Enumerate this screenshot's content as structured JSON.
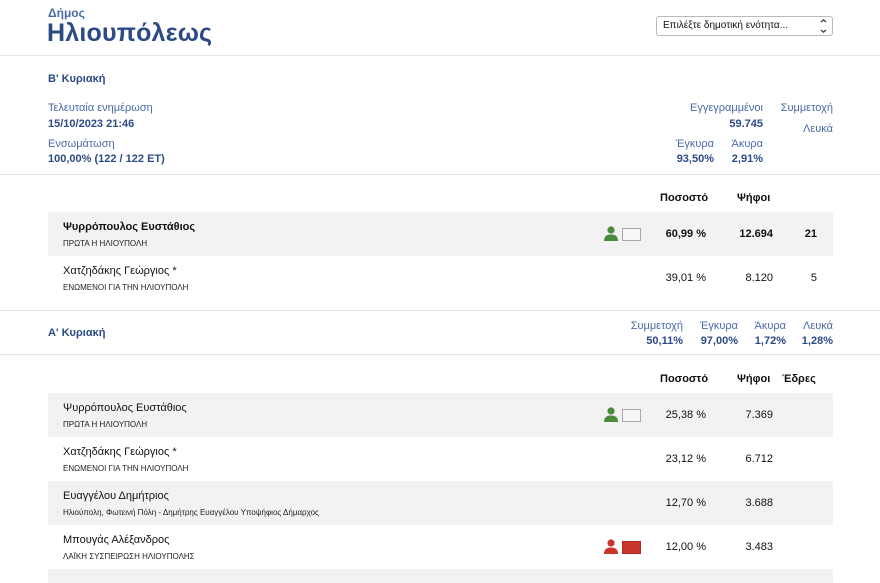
{
  "header": {
    "label": "Δήμος",
    "municipality": "Ηλιουπόλεως",
    "unit_select": "Επιλέξτε δημοτική ενότητα..."
  },
  "round_b": {
    "title": "Β' Κυριακή",
    "last_update_label": "Τελευταία ενημέρωση",
    "last_update_value": "15/10/2023 21:46",
    "integration_label": "Ενσωμάτωση",
    "integration_value": "100,00% (122 / 122 ΕΤ)",
    "registered_label": "Εγγεγραμμένοι",
    "registered_value": "59.745",
    "turnout_label": "Συμμετοχή",
    "blank_label": "Λευκά",
    "valid_label": "Έγκυρα",
    "valid_value": "93,50%",
    "invalid_label": "Άκυρα",
    "invalid_value": "2,91%",
    "columns": {
      "percent": "Ποσοστό",
      "votes": "Ψήφοι"
    },
    "candidates": [
      {
        "name": "Ψυρρόπουλος Ευστάθιος",
        "party": "ΠΡΩΤΑ Η ΗΛΙΟΥΠΟΛΗ",
        "percent": "60,99 %",
        "votes": "12.694",
        "seats": "21"
      },
      {
        "name": "Χατζηδάκης Γεώργιος *",
        "party": "ΕΝΩΜΕΝΟΙ ΓΙΑ ΤΗΝ ΗΛΙΟΥΠΟΛΗ",
        "percent": "39,01 %",
        "votes": "8.120",
        "seats": "5"
      }
    ]
  },
  "round_a": {
    "title": "Α' Κυριακή",
    "turnout_label": "Συμμετοχή",
    "turnout_value": "50,11%",
    "valid_label": "Έγκυρα",
    "valid_value": "97,00%",
    "invalid_label": "Άκυρα",
    "invalid_value": "1,72%",
    "blank_label": "Λευκά",
    "blank_value": "1,28%",
    "columns": {
      "percent": "Ποσοστό",
      "votes": "Ψήφοι",
      "seats": "Έδρες"
    },
    "candidates": [
      {
        "name": "Ψυρρόπουλος Ευστάθιος",
        "party": "ΠΡΩΤΑ Η ΗΛΙΟΥΠΟΛΗ",
        "percent": "25,38 %",
        "votes": "7.369"
      },
      {
        "name": "Χατζηδάκης Γεώργιος *",
        "party": "ΕΝΩΜΕΝΟΙ ΓΙΑ ΤΗΝ ΗΛΙΟΥΠΟΛΗ",
        "percent": "23,12 %",
        "votes": "6.712"
      },
      {
        "name": "Ευαγγέλου Δημήτριος",
        "party": "Ηλιούπολη, Φωτεινή Πόλη - Δημήτρης Ευαγγέλου Υποψήφιος Δήμαρχος",
        "percent": "12,70 %",
        "votes": "3.688"
      },
      {
        "name": "Μπουγάς Αλέξανδρος",
        "party": "ΛΑΪΚΗ ΣΥΣΠΕΙΡΩΣΗ ΗΛΙΟΥΠΟΛΗΣ",
        "percent": "12,00 %",
        "votes": "3.483"
      }
    ]
  },
  "icons": {
    "person": "person-icon",
    "flag": "party-flag-icon",
    "select": "chevron-down-icon"
  },
  "colors": {
    "accent": "#2c4a85",
    "elected": "#4a8a3a",
    "party_red": "#c8362c"
  }
}
